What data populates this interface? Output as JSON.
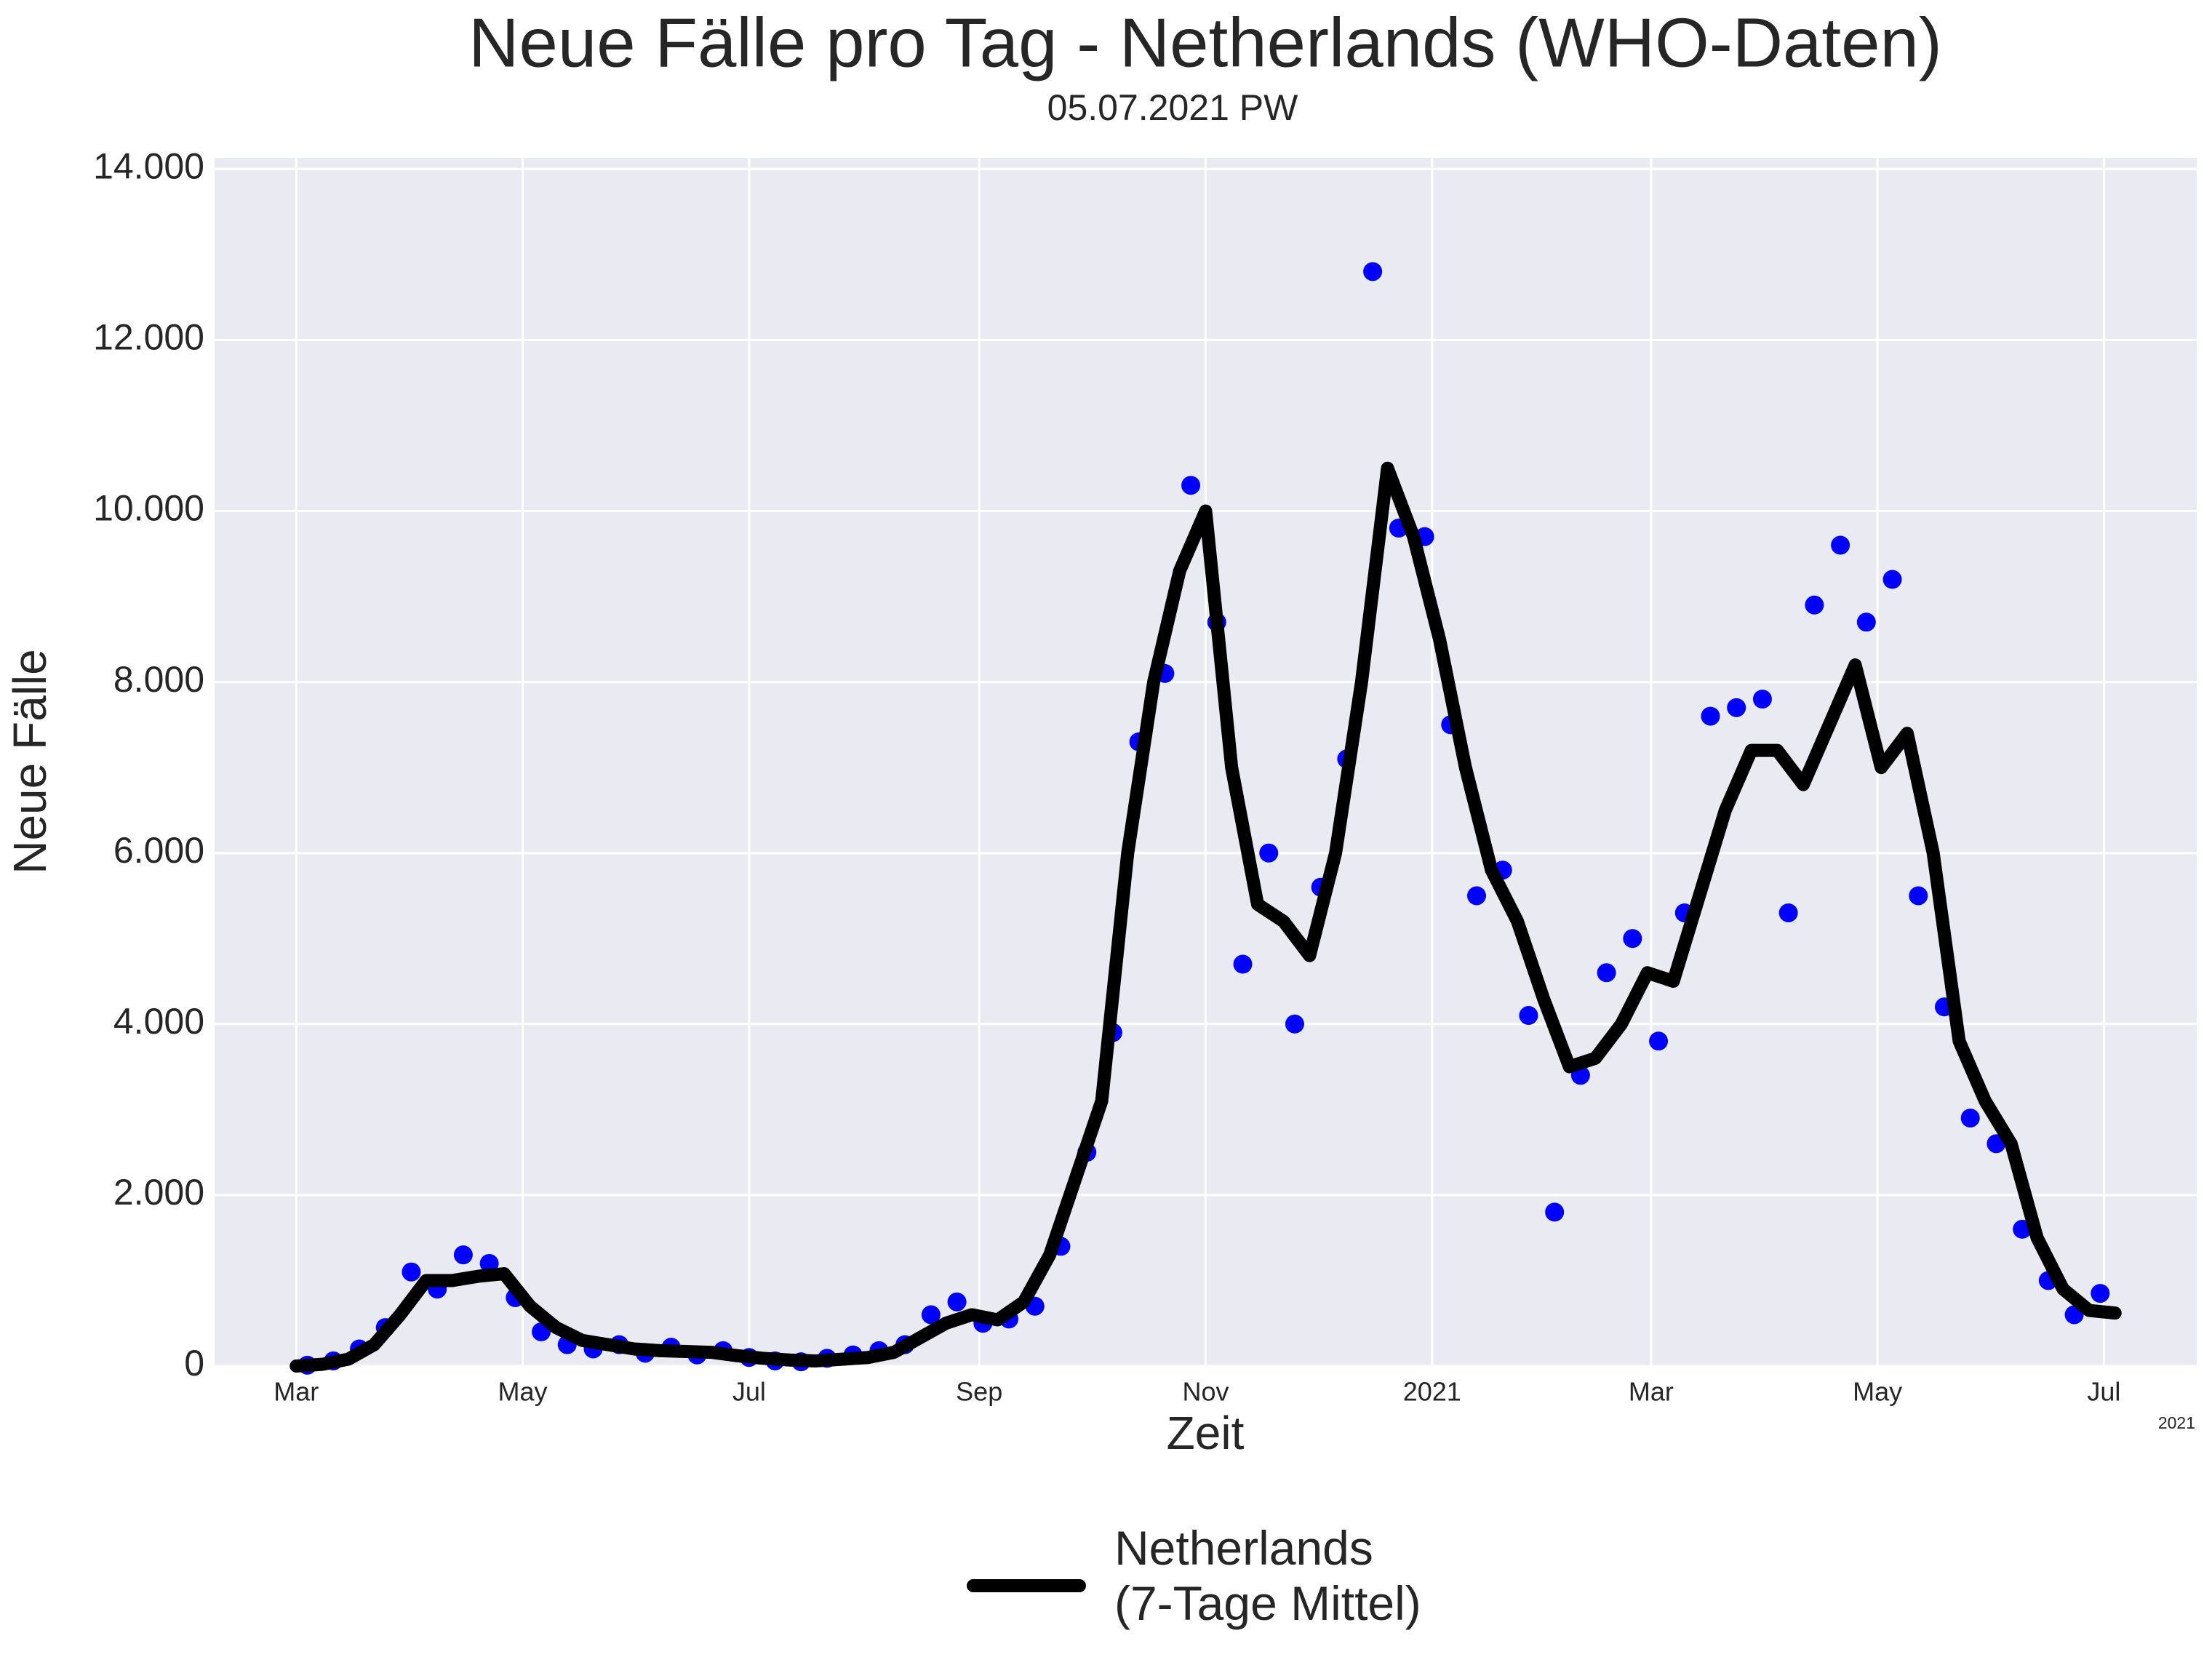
{
  "chart_data": {
    "type": "line",
    "title": "Neue Fälle pro Tag - Netherlands (WHO-Daten)",
    "subtitle": "05.07.2021 PW",
    "xlabel": "Zeit",
    "ylabel": "Neue Fälle",
    "x_offset_text": "2021",
    "xlim": [
      -22,
      512
    ],
    "ylim": [
      0,
      14130
    ],
    "xticks": [
      {
        "value": 0,
        "label": "Mar"
      },
      {
        "value": 61,
        "label": "May"
      },
      {
        "value": 122,
        "label": "Jul"
      },
      {
        "value": 184,
        "label": "Sep"
      },
      {
        "value": 245,
        "label": "Nov"
      },
      {
        "value": 306,
        "label": "2021"
      },
      {
        "value": 365,
        "label": "Mar"
      },
      {
        "value": 426,
        "label": "May"
      },
      {
        "value": 487,
        "label": "Jul"
      }
    ],
    "yticks": [
      0,
      {
        "value": 2000,
        "label": "2.000"
      },
      {
        "value": 4000,
        "label": "4.000"
      },
      {
        "value": 6000,
        "label": "6.000"
      },
      {
        "value": 8000,
        "label": "8.000"
      },
      {
        "value": 10000,
        "label": "10.000"
      },
      {
        "value": 12000,
        "label": "12.000"
      },
      {
        "value": 14000,
        "label": "14.000"
      }
    ],
    "grid": true,
    "legend": "bottom",
    "scatter": {
      "color": "#0000ff",
      "x": [
        3,
        10,
        17,
        24,
        31,
        38,
        45,
        52,
        59,
        66,
        73,
        80,
        87,
        94,
        101,
        108,
        115,
        122,
        129,
        136,
        143,
        150,
        157,
        164,
        171,
        178,
        185,
        192,
        199,
        206,
        213,
        220,
        227,
        234,
        241,
        248,
        255,
        262,
        269,
        276,
        283,
        290,
        297,
        304,
        311,
        318,
        325,
        332,
        339,
        346,
        353,
        360,
        367,
        374,
        381,
        388,
        395,
        402,
        409,
        416,
        423,
        430,
        437,
        444,
        451,
        458,
        465,
        472,
        479,
        486
      ],
      "values": [
        10,
        60,
        200,
        450,
        1100,
        900,
        1300,
        1200,
        800,
        400,
        250,
        200,
        250,
        150,
        220,
        130,
        180,
        100,
        60,
        50,
        90,
        130,
        180,
        250,
        600,
        750,
        500,
        550,
        700,
        1400,
        2500,
        3900,
        7300,
        8100,
        10300,
        8700,
        4700,
        6000,
        4000,
        5600,
        7100,
        12800,
        9800,
        9700,
        7500,
        5500,
        5800,
        4100,
        1800,
        3400,
        4600,
        5000,
        3800,
        5300,
        7600,
        7700,
        7800,
        5300,
        8900,
        9600,
        8700,
        9200,
        5500,
        4200,
        2900,
        2600,
        1600,
        1000,
        600,
        850
      ]
    },
    "series": [
      {
        "name": "Netherlands\n(7-Tage Mittel)",
        "color": "#000000",
        "x": [
          0,
          7,
          14,
          21,
          28,
          35,
          42,
          49,
          56,
          63,
          70,
          77,
          84,
          91,
          98,
          105,
          112,
          119,
          126,
          133,
          140,
          147,
          154,
          161,
          168,
          175,
          182,
          189,
          196,
          203,
          210,
          217,
          224,
          231,
          238,
          245,
          252,
          259,
          266,
          273,
          280,
          287,
          294,
          301,
          308,
          315,
          322,
          329,
          336,
          343,
          350,
          357,
          364,
          371,
          378,
          385,
          392,
          399,
          406,
          413,
          420,
          427,
          434,
          441,
          448,
          455,
          462,
          469,
          476,
          483,
          490
        ],
        "values": [
          0,
          20,
          80,
          250,
          600,
          1000,
          1000,
          1050,
          1080,
          700,
          450,
          300,
          250,
          200,
          180,
          170,
          160,
          120,
          90,
          70,
          60,
          80,
          100,
          160,
          330,
          500,
          600,
          540,
          750,
          1300,
          2200,
          3100,
          6000,
          8000,
          9300,
          10000,
          7000,
          5400,
          5200,
          4800,
          6000,
          8000,
          10500,
          9700,
          8500,
          7000,
          5800,
          5200,
          4300,
          3500,
          3600,
          4000,
          4600,
          4500,
          5500,
          6500,
          7200,
          7200,
          6800,
          7500,
          8200,
          7000,
          7400,
          6000,
          3800,
          3100,
          2600,
          1500,
          900,
          650,
          620
        ]
      }
    ]
  }
}
